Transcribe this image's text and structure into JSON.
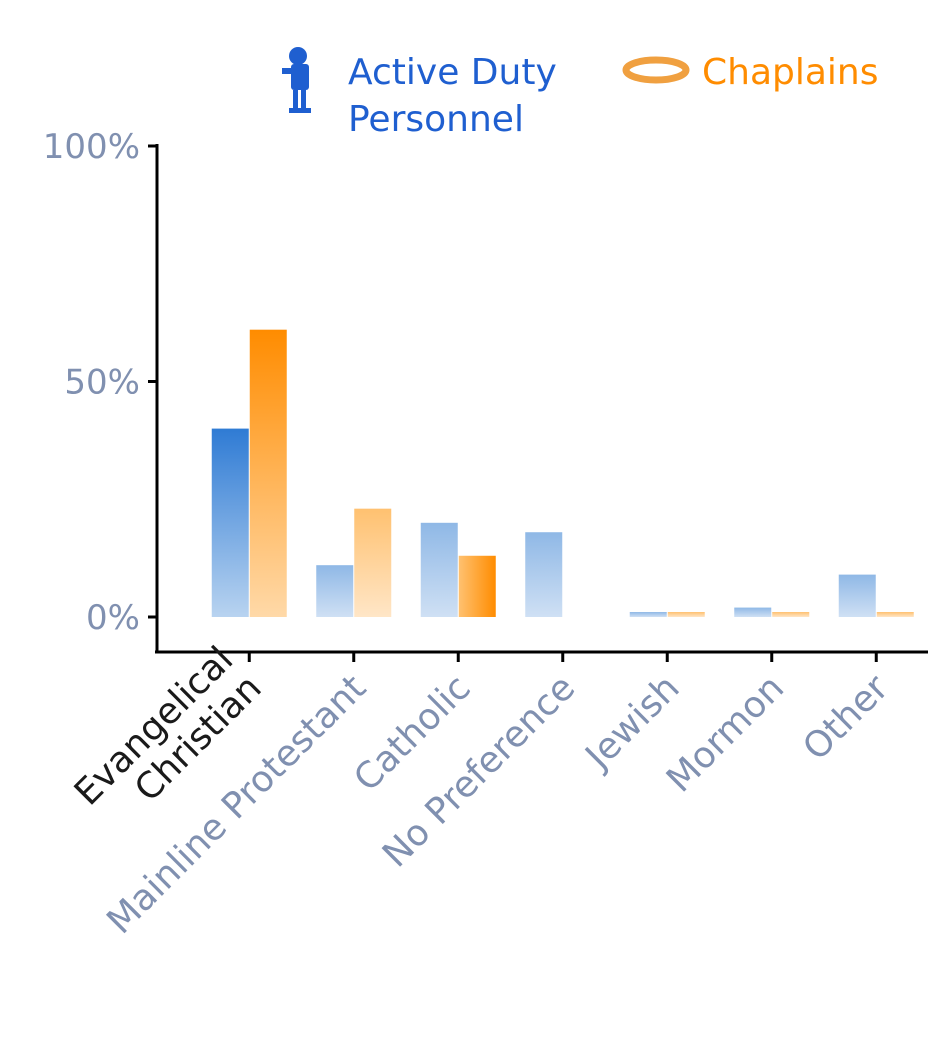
{
  "chart_data": {
    "type": "bar",
    "categories": [
      "Evangelical\nChristian",
      "Mainline Protestant",
      "Catholic",
      "No Preference",
      "Jewish",
      "Mormon",
      "Other"
    ],
    "series": [
      {
        "name": "Active Duty\nPersonnel",
        "values": [
          40,
          11,
          20,
          18,
          1,
          2,
          9
        ]
      },
      {
        "name": "Chaplains",
        "values": [
          61,
          23,
          13,
          0,
          1,
          1,
          1
        ]
      }
    ],
    "ylim": [
      0,
      100
    ],
    "yticks": [
      0,
      50,
      100
    ],
    "ytick_labels": [
      "0%",
      "50%",
      "100%"
    ],
    "highlight_category": "Evangelical\nChristian",
    "legend_position": "top-right",
    "grid": false,
    "colors": {
      "active_duty": "#2f7bd4",
      "chaplains": "#ff8c00",
      "highlight_label": "#1a1a1a",
      "muted_label": "#8090b0",
      "axis": "#000000"
    },
    "icons": {
      "active_duty": "soldier-icon",
      "chaplains": "halo-icon"
    }
  }
}
